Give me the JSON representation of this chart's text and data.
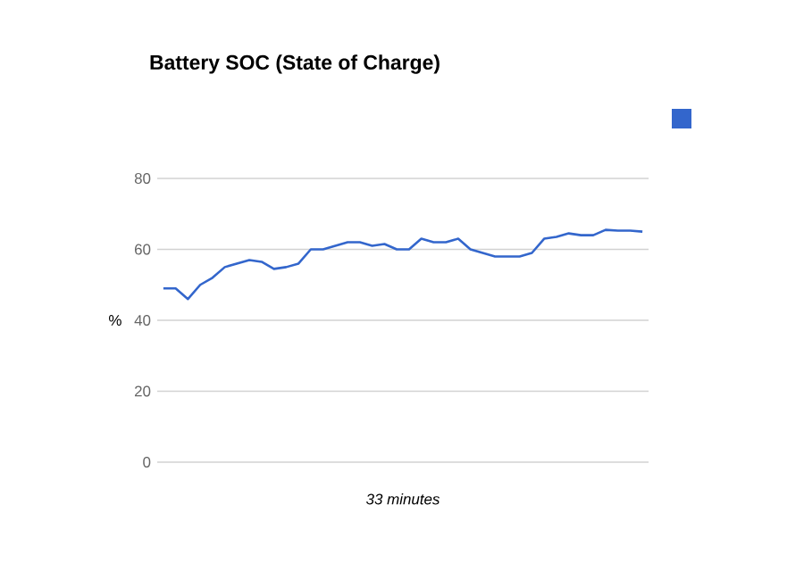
{
  "chart_data": {
    "type": "line",
    "title": "Battery SOC (State of Charge)",
    "xlabel": "33 minutes",
    "ylabel": "%",
    "categories": [
      null,
      null,
      null,
      null,
      null,
      null,
      null,
      null,
      null,
      null,
      null,
      null,
      null,
      null,
      null,
      null,
      null,
      null,
      null,
      null,
      null,
      null,
      null,
      null,
      null,
      null,
      null,
      null,
      null,
      null,
      null,
      null,
      null,
      null,
      null,
      null,
      null,
      null,
      null,
      null
    ],
    "series": [
      {
        "color": "#3366cc",
        "values": [
          49,
          49,
          46,
          50,
          52,
          55,
          56,
          57,
          56.5,
          54.5,
          55,
          56,
          60,
          60,
          61,
          62,
          62,
          61,
          61.5,
          60,
          60,
          63,
          62,
          62,
          63,
          60,
          59,
          58,
          58,
          58,
          59,
          63,
          63.5,
          64.5,
          64,
          64,
          65.5,
          65.3,
          65.3,
          65
        ]
      }
    ],
    "ylim": [
      0,
      80
    ],
    "yticks": [
      0,
      20,
      40,
      60,
      80
    ],
    "grid": "y",
    "tick_labels": "y",
    "marker": "none",
    "line_style": "solid"
  }
}
